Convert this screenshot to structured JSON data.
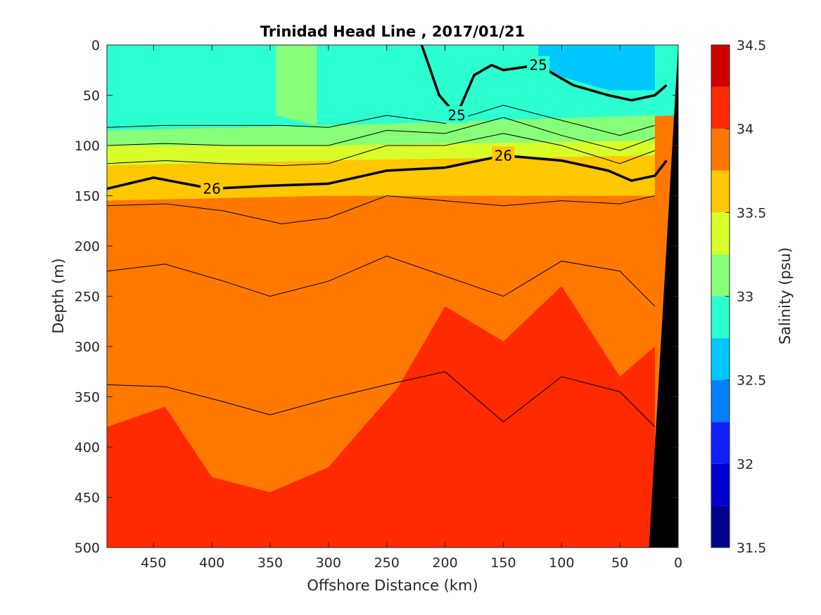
{
  "chart_data": {
    "type": "heatmap",
    "subtype": "filled-contour-section",
    "title": "Trinidad Head Line , 2017/01/21",
    "xlabel": "Offshore Distance (km)",
    "ylabel": "Depth (m)",
    "xlim": [
      490,
      0
    ],
    "ylim": [
      0,
      500
    ],
    "x_reversed": true,
    "y_reversed": true,
    "xticks": [
      450,
      400,
      350,
      300,
      250,
      200,
      150,
      100,
      50,
      0
    ],
    "yticks": [
      0,
      50,
      100,
      150,
      200,
      250,
      300,
      350,
      400,
      450,
      500
    ],
    "colorbar": {
      "label": "Salinity (psu)",
      "range": [
        31.5,
        34.5
      ],
      "ticks": [
        31.5,
        32,
        32.5,
        33,
        33.5,
        34,
        34.5
      ],
      "levels": [
        31.5,
        31.75,
        32,
        32.25,
        32.5,
        32.75,
        33,
        33.25,
        33.5,
        33.75,
        34,
        34.25,
        34.5
      ],
      "colors": [
        "#00008f",
        "#0000d0",
        "#0f1fff",
        "#0080ff",
        "#00c8ff",
        "#2cffd0",
        "#88ff78",
        "#d8ff2a",
        "#ffc800",
        "#ff7800",
        "#ff2a00",
        "#d00000"
      ]
    },
    "salinity_bands": [
      {
        "level": "32.75-33",
        "color": "#2cffd0",
        "x": [
          490,
          300,
          0
        ],
        "top_depth": [
          0,
          0,
          0
        ],
        "bottom_depth": [
          85,
          80,
          70
        ]
      },
      {
        "level": "33-33.25",
        "color": "#88ff78",
        "x": [
          490,
          300,
          20
        ],
        "top_depth": [
          85,
          80,
          70
        ],
        "bottom_depth": [
          100,
          100,
          95
        ]
      },
      {
        "level": "33.25-33.5",
        "color": "#d8ff2a",
        "x": [
          490,
          300,
          20
        ],
        "top_depth": [
          100,
          100,
          95
        ],
        "bottom_depth": [
          120,
          115,
          110
        ]
      },
      {
        "level": "33.5-33.75",
        "color": "#ffc800",
        "x": [
          490,
          300,
          20
        ],
        "top_depth": [
          120,
          115,
          110
        ],
        "bottom_depth": [
          155,
          150,
          150
        ]
      },
      {
        "level": "33.75-34",
        "color": "#ff7800",
        "x": [
          490,
          300,
          20
        ],
        "top_depth": [
          155,
          150,
          150
        ],
        "bottom_depth": [
          500,
          500,
          500
        ]
      },
      {
        "level": "34-34.25",
        "color": "#ff2a00",
        "x": [
          490,
          440,
          400,
          350,
          300,
          240,
          200,
          150,
          100,
          50,
          20
        ],
        "top_depth": [
          380,
          360,
          430,
          445,
          420,
          340,
          260,
          295,
          240,
          330,
          300
        ],
        "bottom_depth": [
          500,
          500,
          500,
          500,
          500,
          500,
          500,
          500,
          500,
          500,
          500
        ]
      },
      {
        "level": "32.25-32.75",
        "color": "#00c8ff",
        "x": [
          120,
          60,
          20
        ],
        "top_depth": [
          0,
          0,
          0
        ],
        "bottom_depth": [
          25,
          45,
          45
        ]
      },
      {
        "level": "33-33.25 lens",
        "color": "#88ff78",
        "x": [
          345,
          310
        ],
        "top_depth": [
          0,
          0
        ],
        "bottom_depth": [
          70,
          80
        ]
      }
    ],
    "labeled_contours": [
      {
        "name": "25",
        "x": [
          220,
          205,
          190,
          175,
          160,
          150,
          120,
          90,
          60,
          40,
          20,
          10
        ],
        "depth": [
          0,
          50,
          70,
          30,
          20,
          25,
          20,
          40,
          50,
          55,
          50,
          40
        ]
      },
      {
        "name": "26",
        "x": [
          490,
          450,
          400,
          350,
          300,
          250,
          200,
          150,
          100,
          60,
          40,
          20,
          10
        ],
        "depth": [
          143,
          132,
          143,
          140,
          138,
          125,
          122,
          110,
          115,
          125,
          135,
          130,
          115
        ]
      }
    ],
    "thin_contours": [
      {
        "x": [
          490,
          440,
          390,
          340,
          300,
          250,
          200,
          150,
          100,
          50,
          20
        ],
        "depth": [
          82,
          80,
          80,
          80,
          82,
          70,
          78,
          60,
          75,
          90,
          80
        ]
      },
      {
        "x": [
          490,
          440,
          390,
          340,
          300,
          250,
          200,
          150,
          100,
          50,
          20
        ],
        "depth": [
          100,
          98,
          100,
          100,
          100,
          85,
          88,
          72,
          90,
          105,
          92
        ]
      },
      {
        "x": [
          490,
          440,
          390,
          340,
          300,
          250,
          200,
          150,
          100,
          50,
          20
        ],
        "depth": [
          118,
          115,
          118,
          120,
          118,
          100,
          100,
          88,
          100,
          118,
          105
        ]
      },
      {
        "x": [
          490,
          440,
          390,
          340,
          300,
          250,
          200,
          150,
          100,
          50,
          20
        ],
        "depth": [
          160,
          158,
          165,
          178,
          172,
          150,
          155,
          160,
          155,
          158,
          150
        ]
      },
      {
        "x": [
          490,
          440,
          390,
          350,
          300,
          250,
          200,
          150,
          100,
          50,
          20
        ],
        "depth": [
          225,
          218,
          235,
          250,
          235,
          210,
          230,
          250,
          215,
          225,
          260
        ]
      },
      {
        "x": [
          490,
          440,
          390,
          350,
          300,
          250,
          200,
          150,
          100,
          50,
          20
        ],
        "depth": [
          338,
          340,
          355,
          368,
          352,
          338,
          325,
          375,
          330,
          345,
          380
        ]
      }
    ],
    "bathymetry": {
      "color": "#000000",
      "x": [
        25,
        0
      ],
      "depth": [
        500,
        0
      ]
    }
  }
}
